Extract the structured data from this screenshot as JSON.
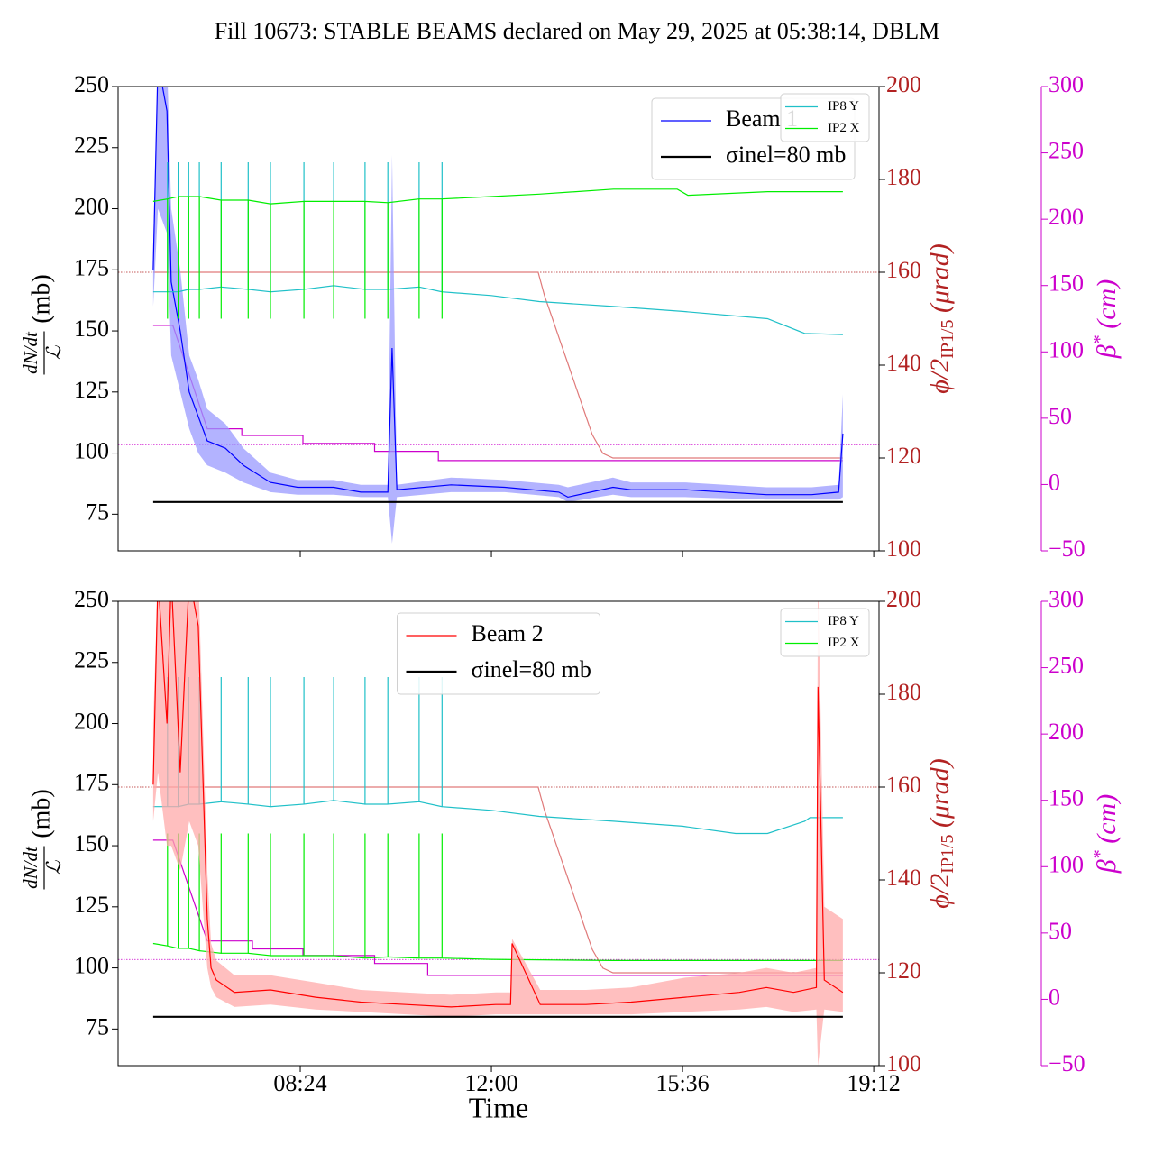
{
  "chart_data": [
    {
      "type": "line",
      "title": "Fill 10673: STABLE BEAMS declared on May 29, 2025 at 05:38:14, DBLM",
      "ylabel": {
        "numerator": "dN/dt",
        "denominator": "ℒ",
        "unit": "(mb)"
      },
      "y2label": {
        "main": "ϕ/2",
        "sub": "IP1/5",
        "unit": " (μrad)"
      },
      "y3label": {
        "main": "β",
        "sup": "*",
        "unit": " (cm)"
      },
      "xlim": [
        4.97,
        19.3
      ],
      "xticks": [
        8.4,
        12,
        15.6,
        19.2
      ],
      "ylim": [
        60,
        250
      ],
      "yticks": [
        75,
        100,
        125,
        150,
        175,
        200,
        225,
        250
      ],
      "y2lim": [
        100,
        200
      ],
      "y2ticks": [
        100,
        120,
        140,
        160,
        180,
        200
      ],
      "y2color": "#b22222",
      "y3lim": [
        -50,
        300
      ],
      "y3ticks": [
        {
          "value": -50,
          "label": "−50"
        },
        0,
        50,
        100,
        150,
        200,
        250,
        300
      ],
      "y3color": "#cc00cc",
      "legend": "upper right",
      "small_legend": "upper right",
      "reference_lines": [
        {
          "axis": "y2",
          "value": 160,
          "color": "#b22222"
        },
        {
          "axis": "y3",
          "value": 30,
          "color": "#cc00cc"
        }
      ],
      "series": [
        {
          "axis": "y2",
          "color": "#e07a7a",
          "x": [
            5.63,
            12.88,
            13.0,
            13.15,
            13.3,
            13.45,
            13.6,
            13.75,
            13.9,
            14.1,
            14.29,
            18.62
          ],
          "values": [
            160,
            160,
            155,
            150,
            145,
            140,
            135,
            130,
            125,
            121,
            120,
            120
          ]
        },
        {
          "axis": "y3",
          "color": "#cc00cc",
          "x": [
            5.63,
            6.0,
            6.65,
            7.3,
            7.3,
            8.45,
            8.45,
            9.8,
            9.8,
            11.0,
            11.0,
            18.62
          ],
          "values": [
            120,
            120,
            42,
            42,
            37,
            37,
            31,
            31,
            25,
            25,
            18,
            18
          ]
        },
        {
          "style": "band",
          "color": "#9999ff",
          "x": [
            5.63,
            5.72,
            5.89,
            5.97,
            6.14,
            6.31,
            6.48,
            6.65,
            6.99,
            7.33,
            7.84,
            8.35,
            9.03,
            9.54,
            10.05,
            10.13,
            10.22,
            11.24,
            12.25,
            13.27,
            13.44,
            14.29,
            14.63,
            15.65,
            17.18,
            18.03,
            18.54,
            18.62
          ],
          "lower": [
            160,
            200,
            190,
            140,
            125,
            110,
            100,
            95,
            92,
            88,
            84,
            83,
            83,
            82,
            82,
            63,
            82,
            84,
            84,
            82,
            80,
            83,
            82,
            82,
            81,
            81,
            81,
            82
          ],
          "upper": [
            185,
            262,
            262,
            200,
            175,
            140,
            130,
            118,
            112,
            102,
            92,
            89,
            89,
            87,
            87,
            222,
            87,
            90,
            89,
            87,
            86,
            90,
            88,
            88,
            86,
            86,
            87,
            124
          ]
        },
        {
          "name": "Beam 1",
          "legend": "main",
          "color": "#0000ff",
          "x": [
            5.63,
            5.72,
            5.89,
            5.97,
            6.14,
            6.31,
            6.48,
            6.65,
            6.99,
            7.33,
            7.84,
            8.35,
            9.03,
            9.54,
            10.05,
            10.13,
            10.22,
            11.24,
            12.25,
            13.27,
            13.44,
            14.29,
            14.63,
            15.65,
            17.18,
            18.03,
            18.54,
            18.62
          ],
          "values": [
            175,
            260,
            240,
            170,
            150,
            125,
            115,
            105,
            102,
            95,
            88,
            86,
            86,
            84,
            84,
            143,
            85,
            87,
            86,
            84,
            82,
            86,
            85,
            85,
            83,
            83,
            84,
            108
          ]
        },
        {
          "name": "σinel=80 mb",
          "legend": "main",
          "color": "#000000",
          "width": 2.2,
          "x": [
            5.63,
            18.62
          ],
          "values": [
            80,
            80
          ]
        },
        {
          "name": "IP8 Y",
          "legend": "small",
          "color": "#20c0c8",
          "x": [
            5.63,
            5.9,
            5.9,
            5.9,
            6.1,
            6.1,
            6.1,
            6.3,
            6.3,
            6.3,
            6.5,
            6.5,
            6.5,
            6.91,
            6.91,
            6.91,
            7.42,
            7.42,
            7.42,
            7.84,
            7.84,
            7.84,
            8.47,
            8.47,
            8.47,
            9.03,
            9.03,
            9.03,
            9.62,
            9.62,
            9.62,
            10.05,
            10.05,
            10.05,
            10.64,
            10.64,
            10.64,
            11.07,
            11.07,
            11.07,
            12.0,
            12.9,
            14.3,
            15.6,
            17.2,
            17.9,
            18.62
          ],
          "values": [
            166,
            166,
            219,
            166,
            166,
            219,
            166,
            167,
            219,
            167,
            167,
            219,
            167,
            168,
            219,
            168,
            167,
            219,
            167,
            166,
            219,
            166,
            167,
            219,
            167,
            168.5,
            219,
            168.5,
            167,
            219,
            167,
            167,
            219,
            167,
            168,
            219,
            168,
            166,
            219,
            166,
            164.5,
            162,
            160,
            158,
            155,
            149,
            148.5
          ]
        },
        {
          "name": "IP2 X",
          "legend": "small",
          "color": "#00ee00",
          "x": [
            5.63,
            5.9,
            5.9,
            5.9,
            6.1,
            6.1,
            6.1,
            6.3,
            6.3,
            6.3,
            6.5,
            6.5,
            6.5,
            6.91,
            6.91,
            6.91,
            7.42,
            7.42,
            7.42,
            7.84,
            7.84,
            7.84,
            8.47,
            8.47,
            8.47,
            9.03,
            9.03,
            9.03,
            9.62,
            9.62,
            9.62,
            10.05,
            10.05,
            10.05,
            10.64,
            10.64,
            10.64,
            11.07,
            11.07,
            11.07,
            12.0,
            12.9,
            14.3,
            15.5,
            15.7,
            17.2,
            18.62
          ],
          "values": [
            203,
            204,
            155,
            204,
            205,
            155,
            205,
            205,
            155,
            205,
            205,
            155,
            205,
            203.5,
            155,
            203.5,
            203.5,
            155,
            203.5,
            202,
            155,
            202,
            203,
            155,
            203,
            203,
            155,
            203,
            203,
            155,
            203,
            202.5,
            155,
            202.5,
            204,
            155,
            204,
            204,
            155,
            204,
            205,
            206,
            208,
            208,
            205.5,
            207,
            207
          ]
        }
      ]
    },
    {
      "type": "line",
      "xlabel": "Time",
      "ylabel": {
        "numerator": "dN/dt",
        "denominator": "ℒ",
        "unit": "(mb)"
      },
      "y2label": {
        "main": "ϕ/2",
        "sub": "IP1/5",
        "unit": " (μrad)"
      },
      "y3label": {
        "main": "β",
        "sup": "*",
        "unit": " (cm)"
      },
      "xlim": [
        4.97,
        19.3
      ],
      "xticks": [
        {
          "value": 8.4,
          "label": "08:24"
        },
        {
          "value": 12,
          "label": "12:00"
        },
        {
          "value": 15.6,
          "label": "15:36"
        },
        {
          "value": 19.2,
          "label": "19:12"
        }
      ],
      "ylim": [
        60,
        250
      ],
      "yticks": [
        75,
        100,
        125,
        150,
        175,
        200,
        225,
        250
      ],
      "y2lim": [
        100,
        200
      ],
      "y2ticks": [
        100,
        120,
        140,
        160,
        180,
        200
      ],
      "y2color": "#b22222",
      "y3lim": [
        -50,
        300
      ],
      "y3ticks": [
        {
          "value": -50,
          "label": "−50"
        },
        0,
        50,
        100,
        150,
        200,
        250,
        300
      ],
      "y3color": "#cc00cc",
      "legend": "upper center",
      "small_legend": "upper right",
      "reference_lines": [
        {
          "axis": "y2",
          "value": 160,
          "color": "#b22222"
        },
        {
          "axis": "y3",
          "value": 30,
          "color": "#cc00cc"
        }
      ],
      "series": [
        {
          "axis": "y2",
          "color": "#e07a7a",
          "x": [
            5.63,
            12.88,
            13.0,
            13.15,
            13.3,
            13.45,
            13.6,
            13.75,
            13.9,
            14.1,
            14.29,
            18.62
          ],
          "values": [
            160,
            160,
            155,
            150,
            145,
            140,
            135,
            130,
            125,
            121,
            120,
            120
          ]
        },
        {
          "axis": "y3",
          "color": "#cc00cc",
          "x": [
            5.63,
            6.0,
            6.65,
            7.5,
            7.5,
            8.45,
            8.45,
            9.8,
            9.8,
            10.8,
            10.8,
            18.62
          ],
          "values": [
            120,
            120,
            44,
            44,
            38,
            38,
            33,
            33,
            27,
            27,
            18,
            18
          ]
        },
        {
          "name": "IP8 Y",
          "legend": "small",
          "color": "#20c0c8",
          "x": [
            5.63,
            5.9,
            5.9,
            5.9,
            6.1,
            6.1,
            6.1,
            6.3,
            6.3,
            6.3,
            6.5,
            6.5,
            6.5,
            6.91,
            6.91,
            6.91,
            7.42,
            7.42,
            7.42,
            7.84,
            7.84,
            7.84,
            8.47,
            8.47,
            8.47,
            9.03,
            9.03,
            9.03,
            9.62,
            9.62,
            9.62,
            10.05,
            10.05,
            10.05,
            10.64,
            10.64,
            10.64,
            11.07,
            11.07,
            11.07,
            12.0,
            12.9,
            14.3,
            15.6,
            16.6,
            17.2,
            17.9,
            18.0,
            18.62
          ],
          "values": [
            166,
            166,
            219,
            166,
            166,
            219,
            166,
            167,
            219,
            167,
            167,
            219,
            167,
            168,
            219,
            168,
            167,
            219,
            167,
            166,
            219,
            166,
            167,
            219,
            167,
            168.5,
            219,
            168.5,
            167,
            219,
            167,
            167,
            219,
            167,
            168,
            219,
            168,
            166,
            219,
            166,
            164.5,
            162,
            160,
            158,
            155,
            155,
            160,
            161.5,
            161.5
          ]
        },
        {
          "name": "IP2 X",
          "legend": "small",
          "color": "#00ee00",
          "x": [
            5.63,
            5.9,
            5.9,
            5.9,
            6.1,
            6.1,
            6.1,
            6.3,
            6.3,
            6.3,
            6.5,
            6.5,
            6.5,
            6.91,
            6.91,
            6.91,
            7.42,
            7.42,
            7.42,
            7.84,
            7.84,
            7.84,
            8.47,
            8.47,
            8.47,
            9.03,
            9.03,
            9.03,
            9.62,
            9.62,
            9.62,
            10.05,
            10.05,
            10.05,
            10.64,
            10.64,
            10.64,
            11.07,
            11.07,
            11.07,
            12.0,
            14.3,
            18.62
          ],
          "values": [
            110,
            109,
            155,
            109,
            108,
            155,
            108,
            108,
            155,
            108,
            107,
            155,
            107,
            106,
            155,
            106,
            106,
            155,
            106,
            105,
            155,
            105,
            105,
            155,
            105,
            105,
            155,
            105,
            104,
            155,
            104,
            104.5,
            155,
            104.5,
            104,
            155,
            104,
            104,
            155,
            104,
            103.5,
            103,
            103
          ]
        },
        {
          "style": "band",
          "color": "#ffaaaa",
          "x": [
            5.63,
            5.72,
            5.89,
            5.97,
            6.14,
            6.31,
            6.48,
            6.65,
            6.72,
            6.82,
            7.16,
            7.84,
            8.69,
            9.54,
            10.39,
            11.24,
            12.08,
            12.36,
            12.39,
            12.92,
            13.78,
            14.63,
            15.65,
            16.67,
            17.18,
            17.69,
            18.12,
            18.15,
            18.27,
            18.62
          ],
          "lower": [
            160,
            180,
            150,
            150,
            140,
            160,
            150,
            100,
            92,
            88,
            84,
            85,
            83,
            82,
            81,
            80,
            81,
            81,
            81,
            81,
            81,
            81,
            82,
            83,
            84,
            82,
            83,
            60,
            83,
            82
          ],
          "upper": [
            200,
            262,
            262,
            262,
            262,
            262,
            262,
            140,
            110,
            103,
            97,
            97,
            94,
            91,
            90,
            89,
            90,
            90,
            112,
            91,
            91,
            92,
            96,
            98,
            100,
            98,
            100,
            262,
            125,
            120
          ]
        },
        {
          "name": "Beam 2",
          "legend": "main",
          "color": "#ff0000",
          "x": [
            5.63,
            5.72,
            5.89,
            5.97,
            6.14,
            6.31,
            6.48,
            6.65,
            6.72,
            6.82,
            7.16,
            7.84,
            8.69,
            9.54,
            10.39,
            11.24,
            12.08,
            12.36,
            12.39,
            12.92,
            13.78,
            14.63,
            15.65,
            16.67,
            17.18,
            17.69,
            18.12,
            18.15,
            18.27,
            18.62
          ],
          "values": [
            175,
            260,
            200,
            260,
            180,
            260,
            240,
            120,
            100,
            95,
            90,
            91,
            88,
            86,
            85,
            84,
            85,
            85,
            110,
            85,
            85,
            86,
            88,
            90,
            92,
            90,
            92,
            215,
            95,
            90
          ]
        },
        {
          "name": "σinel=80 mb",
          "legend": "main",
          "color": "#000000",
          "width": 2.2,
          "x": [
            5.63,
            18.62
          ],
          "values": [
            80,
            80
          ]
        }
      ]
    }
  ]
}
